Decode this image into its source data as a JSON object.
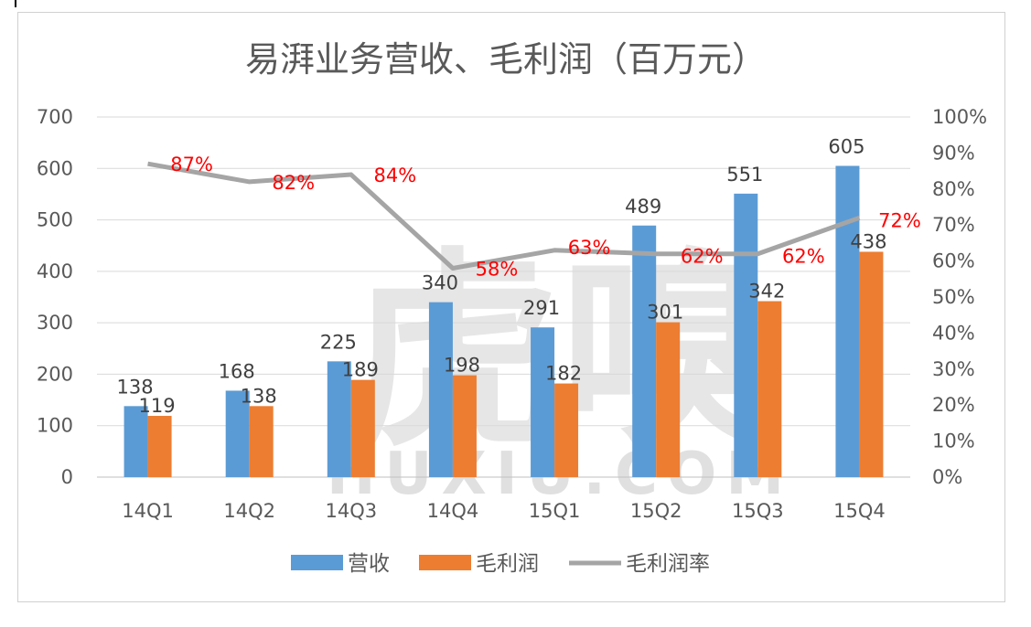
{
  "chart_data": {
    "type": "bar",
    "title": "易湃业务营收、毛利润（百万元）",
    "categories": [
      "14Q1",
      "14Q2",
      "14Q3",
      "14Q4",
      "15Q1",
      "15Q2",
      "15Q3",
      "15Q4"
    ],
    "series": [
      {
        "name": "营收",
        "type": "bar",
        "axis": "left",
        "color": "#5b9bd5",
        "values": [
          138,
          168,
          225,
          340,
          291,
          489,
          551,
          605
        ]
      },
      {
        "name": "毛利润",
        "type": "bar",
        "axis": "left",
        "color": "#ed7d31",
        "values": [
          119,
          138,
          189,
          198,
          182,
          301,
          342,
          438
        ]
      },
      {
        "name": "毛利润率",
        "type": "line",
        "axis": "right",
        "color": "#a5a5a5",
        "values": [
          0.87,
          0.82,
          0.84,
          0.58,
          0.63,
          0.62,
          0.62,
          0.72
        ],
        "labels": [
          "87%",
          "82%",
          "84%",
          "58%",
          "63%",
          "62%",
          "62%",
          "72%"
        ],
        "label_color": "#ff0000"
      }
    ],
    "y_left": {
      "ylim": [
        0,
        700
      ],
      "ticks": [
        "0",
        "100",
        "200",
        "300",
        "400",
        "500",
        "600",
        "700"
      ]
    },
    "y_right": {
      "ylim": [
        0,
        1
      ],
      "ticks": [
        "0%",
        "10%",
        "20%",
        "30%",
        "40%",
        "50%",
        "60%",
        "70%",
        "80%",
        "90%",
        "100%"
      ]
    },
    "grid": true,
    "legend": "bottom"
  },
  "watermark": {
    "big_text": "虎嗅",
    "small_text": "HUXIU.COM"
  }
}
